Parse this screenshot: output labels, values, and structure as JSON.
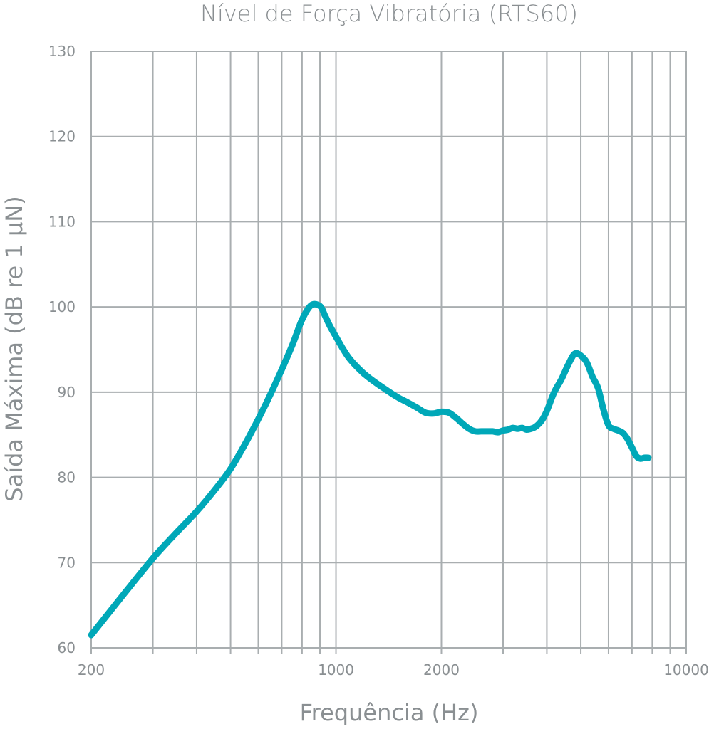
{
  "chart_data": {
    "type": "line",
    "title": "Nível de Força Vibratória (RTS60)",
    "xlabel": "Frequência (Hz)",
    "ylabel": "Saída Máxima (dB re 1 μN)",
    "xscale": "log",
    "xlim": [
      200,
      10000
    ],
    "ylim": [
      60,
      130
    ],
    "xticks": [
      200,
      1000,
      2000,
      10000
    ],
    "xtick_labels": [
      "200",
      "1000",
      "2000",
      "10000"
    ],
    "yticks": [
      60,
      70,
      80,
      90,
      100,
      110,
      120,
      130
    ],
    "ytick_labels": [
      "60",
      "70",
      "80",
      "90",
      "100",
      "110",
      "120",
      "130"
    ],
    "x_minor_gridlines": [
      300,
      400,
      500,
      600,
      700,
      800,
      900,
      1000,
      2000,
      3000,
      4000,
      5000,
      6000,
      7000,
      8000,
      9000
    ],
    "grid": true,
    "legend": "none",
    "series_color": "#00a8b8",
    "series": [
      {
        "x": [
          200,
          250,
          300,
          350,
          400,
          450,
          500,
          560,
          620,
          680,
          750,
          800,
          850,
          900,
          930,
          960,
          1000,
          1050,
          1100,
          1200,
          1300,
          1400,
          1500,
          1600,
          1700,
          1800,
          1900,
          2000,
          2100,
          2200,
          2300,
          2400,
          2500,
          2600,
          2700,
          2800,
          2900,
          3000,
          3100,
          3200,
          3300,
          3400,
          3500,
          3600,
          3700,
          3800,
          3900,
          4000,
          4200,
          4400,
          4600,
          4800,
          5000,
          5200,
          5400,
          5600,
          5800,
          6000,
          6200,
          6400,
          6600,
          6800,
          7000,
          7200,
          7400,
          7600,
          7800
        ],
        "y": [
          61.5,
          66.5,
          70.5,
          73.5,
          76,
          78.5,
          81,
          84.5,
          88,
          91.5,
          95.5,
          98.5,
          100.2,
          100.1,
          99,
          97.8,
          96.5,
          95,
          93.8,
          92.2,
          91.1,
          90.2,
          89.4,
          88.8,
          88.2,
          87.6,
          87.5,
          87.7,
          87.6,
          87.0,
          86.3,
          85.7,
          85.4,
          85.4,
          85.4,
          85.4,
          85.3,
          85.5,
          85.6,
          85.8,
          85.7,
          85.8,
          85.6,
          85.7,
          85.9,
          86.3,
          86.9,
          87.8,
          90.0,
          91.5,
          93.2,
          94.5,
          94.3,
          93.5,
          91.8,
          90.5,
          88,
          86.1,
          85.7,
          85.5,
          85.2,
          84.5,
          83.5,
          82.5,
          82.2,
          82.3,
          82.3
        ]
      }
    ]
  }
}
